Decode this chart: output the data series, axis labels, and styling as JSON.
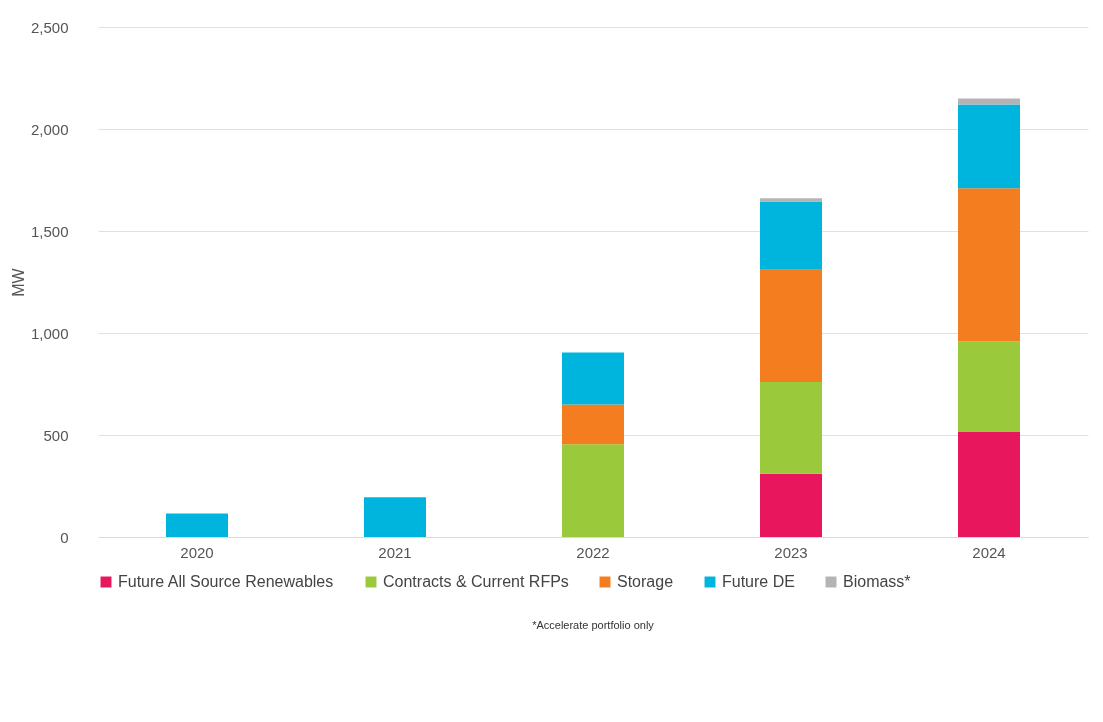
{
  "chart_data": {
    "type": "bar",
    "stacked": true,
    "ylabel": "MW",
    "categories": [
      "2020",
      "2021",
      "2022",
      "2023",
      "2024"
    ],
    "series": [
      {
        "name": "Future All Source Renewables",
        "color": "#e8175d",
        "values": [
          0,
          0,
          0,
          310,
          515
        ]
      },
      {
        "name": "Contracts & Current RFPs",
        "color": "#9aca3c",
        "values": [
          0,
          0,
          455,
          450,
          445
        ]
      },
      {
        "name": "Storage",
        "color": "#f47e1f",
        "values": [
          0,
          0,
          195,
          550,
          750
        ]
      },
      {
        "name": "Future DE",
        "color": "#00b5dd",
        "values": [
          115,
          195,
          255,
          335,
          410
        ]
      },
      {
        "name": "Biomass*",
        "color": "#b4b4b4",
        "values": [
          0,
          0,
          0,
          15,
          30
        ]
      }
    ],
    "ylim": [
      0,
      2500
    ],
    "yticks": [
      0,
      {
        "value": 500,
        "label": "500"
      },
      {
        "value": 1000,
        "label": "1,000"
      },
      {
        "value": 1500,
        "label": "1,500"
      },
      {
        "value": 2000,
        "label": "2,000"
      },
      {
        "value": 2500,
        "label": "2,500"
      }
    ],
    "grid": "y",
    "legend": "bottom",
    "annotations": [
      "*Accelerate portfolio only"
    ]
  }
}
